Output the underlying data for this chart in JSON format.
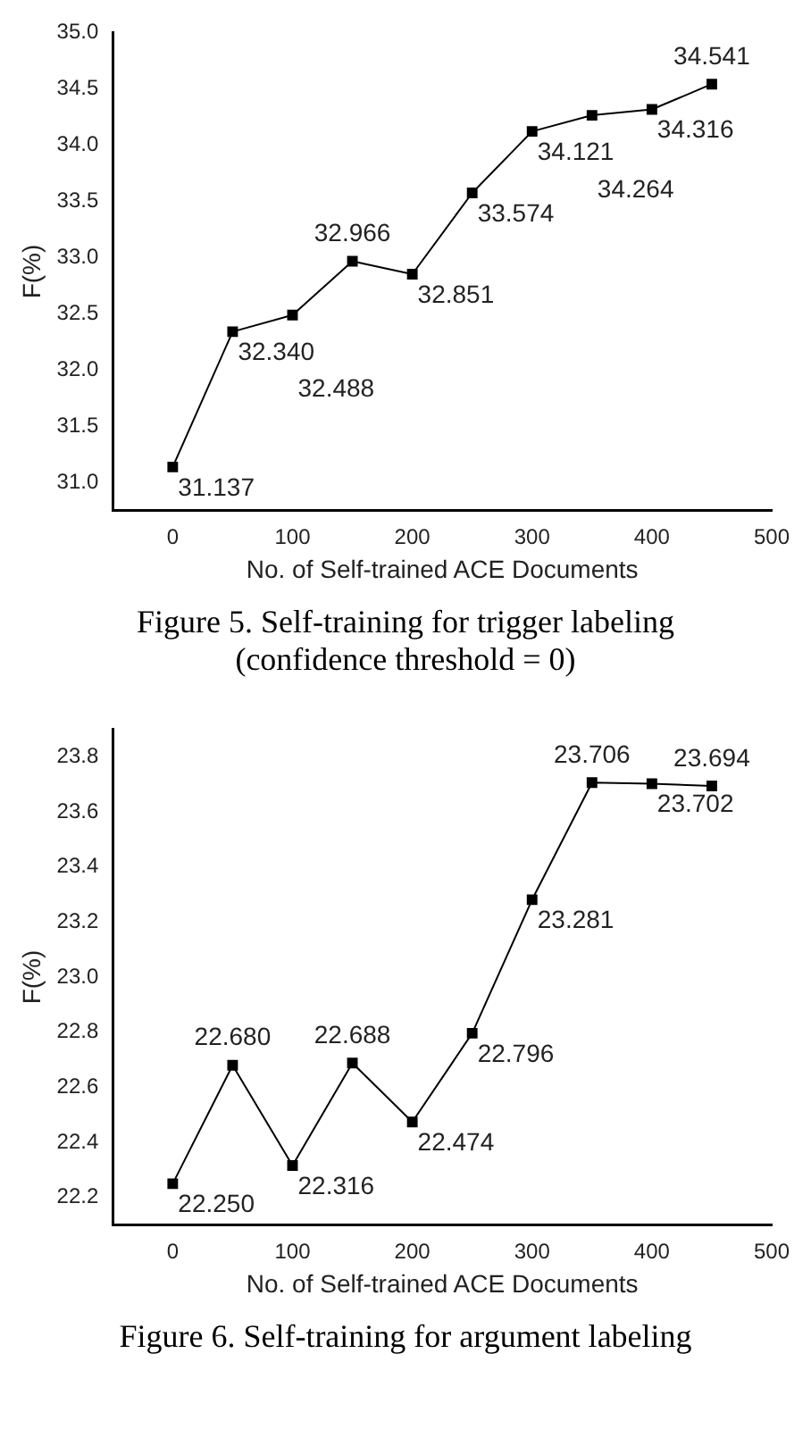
{
  "chart_data": [
    {
      "type": "line",
      "title": "Figure 5. Self-training for trigger labeling (confidence threshold = 0)",
      "xlabel": "No. of Self-trained ACE Documents",
      "ylabel": "F(%)",
      "x": [
        0,
        50,
        100,
        150,
        200,
        250,
        300,
        350,
        400,
        450
      ],
      "series": [
        {
          "color": "#000000",
          "values": [
            31.137,
            32.34,
            32.488,
            32.966,
            32.851,
            33.574,
            34.121,
            34.264,
            34.316,
            34.541
          ],
          "value_labels": [
            "31.137",
            "32.340",
            "32.488",
            "32.966",
            "32.851",
            "33.574",
            "34.121",
            "34.264",
            "34.316",
            "34.541"
          ]
        }
      ],
      "xlim": [
        -50,
        500
      ],
      "xticks": [
        0,
        100,
        200,
        300,
        400,
        500
      ],
      "ylim": [
        30.75,
        35.0
      ],
      "yticks": [
        {
          "value": 31,
          "label": "31.0"
        },
        31.5,
        {
          "value": 32,
          "label": "32.0"
        },
        32.5,
        {
          "value": 33,
          "label": "33.0"
        },
        33.5,
        {
          "value": 34,
          "label": "34.0"
        },
        34.5,
        {
          "value": 35,
          "label": "35.0"
        }
      ],
      "marker": "square",
      "line_style": "solid",
      "grid": false,
      "legend": false
    },
    {
      "type": "line",
      "title": "Figure 6. Self-training for argument labeling",
      "xlabel": "No. of Self-trained ACE Documents",
      "ylabel": "F(%)",
      "x": [
        0,
        50,
        100,
        150,
        200,
        250,
        300,
        350,
        400,
        450
      ],
      "series": [
        {
          "color": "#000000",
          "values": [
            22.25,
            22.68,
            22.316,
            22.688,
            22.474,
            22.796,
            23.281,
            23.706,
            23.702,
            23.694
          ],
          "value_labels": [
            "22.250",
            "22.680",
            "22.316",
            "22.688",
            "22.474",
            "22.796",
            "23.281",
            "23.706",
            "23.702",
            "23.694"
          ]
        }
      ],
      "xlim": [
        -50,
        500
      ],
      "xticks": [
        0,
        100,
        200,
        300,
        400,
        500
      ],
      "ylim": [
        22.1,
        23.9
      ],
      "yticks": [
        22.2,
        22.4,
        22.6,
        22.8,
        {
          "value": 23,
          "label": "23.0"
        },
        23.2,
        23.4,
        23.6,
        23.8
      ],
      "marker": "square",
      "line_style": "solid",
      "grid": false,
      "legend": false
    }
  ]
}
